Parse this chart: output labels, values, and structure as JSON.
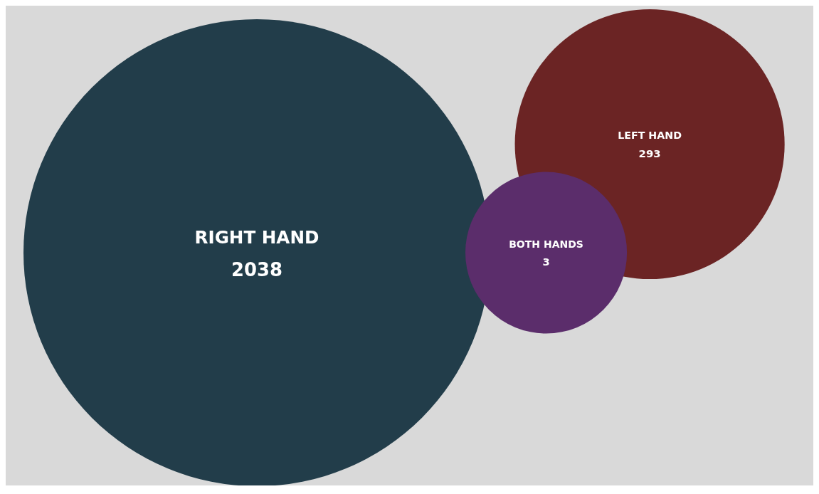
{
  "chart_data": {
    "type": "other",
    "categories": [
      "RIGHT HAND",
      "LEFT HAND",
      "BOTH HANDS"
    ],
    "values": [
      2038,
      293,
      3
    ],
    "colors": [
      "#223d4a",
      "#6b2424",
      "#5b2d6b"
    ],
    "data_labels": true
  }
}
